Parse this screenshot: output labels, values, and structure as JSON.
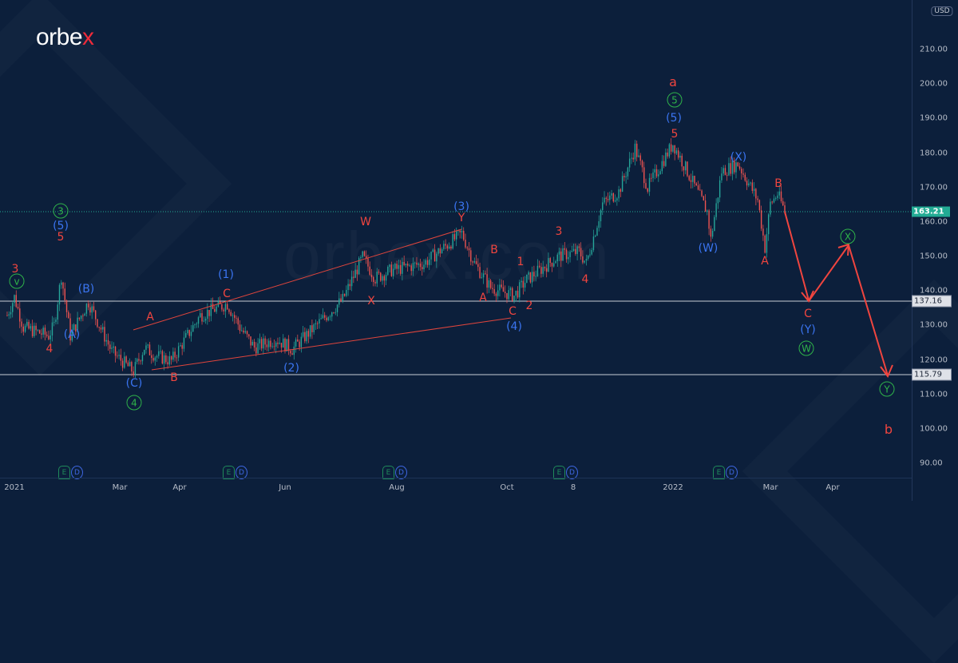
{
  "brand": {
    "logo_main": "orbe",
    "logo_x": "x",
    "watermark": "orbex.com"
  },
  "chart_data": {
    "type": "candlestick",
    "currency": "USD",
    "x_ticks": [
      "2021",
      "Mar",
      "Apr",
      "Jun",
      "Aug",
      "Oct",
      "8",
      "2022",
      "Mar",
      "Apr"
    ],
    "y_ticks": [
      "210.00",
      "200.00",
      "190.00",
      "180.00",
      "170.00",
      "160.00",
      "150.00",
      "140.00",
      "130.00",
      "120.00",
      "110.00",
      "100.00",
      "90.00"
    ],
    "ylim": [
      90,
      210
    ],
    "last_price": "163.21",
    "levels": [
      "137.16",
      "115.79"
    ],
    "price_path_days_since_2021_01_01": [
      -4,
      0,
      5,
      19,
      22,
      26,
      31,
      41,
      54,
      66,
      72,
      78,
      87,
      103,
      118,
      125,
      133,
      145,
      154,
      182,
      193,
      200,
      209,
      227,
      248,
      255,
      264,
      277,
      284,
      302,
      313,
      317,
      326,
      335,
      344,
      351,
      365,
      373,
      384,
      386,
      392,
      401,
      412,
      416,
      419,
      423,
      427
    ],
    "price_path_values": [
      132.9,
      138.2,
      129.4,
      127,
      130,
      144.4,
      127,
      136.8,
      122.4,
      116.6,
      123.6,
      121.3,
      119.7,
      132.9,
      136.3,
      129.4,
      123.6,
      126,
      123.1,
      137.5,
      149.8,
      143.7,
      146,
      148,
      156.7,
      148,
      141,
      138.6,
      143.3,
      150.2,
      151.4,
      148,
      165.3,
      168.8,
      181.5,
      169.9,
      182.7,
      174.6,
      163,
      154.9,
      174.6,
      176.9,
      166.4,
      152.5,
      165.3,
      168.1,
      163.2
    ],
    "up_color": "#26a69a",
    "down_color": "#ef5350",
    "waves": {
      "red": [
        "3",
        "5",
        "4",
        "A",
        "B",
        "C",
        "W",
        "X",
        "Y",
        "B",
        "1",
        "A",
        "C",
        "2",
        "3",
        "4",
        "5",
        "a",
        "B",
        "A",
        "C",
        "b"
      ],
      "blue": [
        "(5)",
        "(A)",
        "(B)",
        "(C)",
        "(1)",
        "(2)",
        "(3)",
        "(4)",
        "(5)",
        "(W)",
        "(X)",
        "(Y)"
      ],
      "green": [
        "3",
        "v",
        "4",
        "5",
        "X",
        "W",
        "Y"
      ]
    },
    "events": [
      "E",
      "D"
    ]
  }
}
